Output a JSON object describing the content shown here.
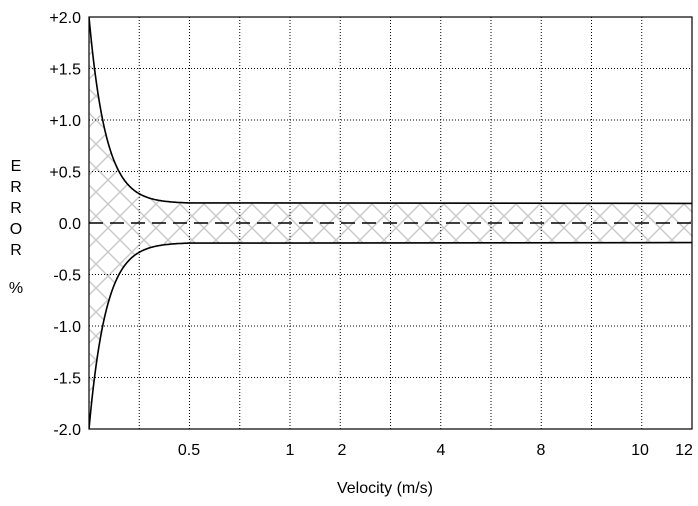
{
  "chart_data": {
    "type": "line",
    "title": "",
    "xlabel": "Velocity (m/s)",
    "ylabel_letters": [
      "E",
      "R",
      "R",
      "O",
      "R"
    ],
    "ylabel_unit": "%",
    "y_ticks": [
      "+2.0",
      "+1.5",
      "+1.0",
      "+0.5",
      "0.0",
      "-0.5",
      "-1.0",
      "-1.5",
      "-2.0"
    ],
    "y_values": [
      2.0,
      1.5,
      1.0,
      0.5,
      0.0,
      -0.5,
      -1.0,
      -1.5,
      -2.0
    ],
    "ylim": [
      -2.0,
      2.0
    ],
    "x_tick_labels": [
      "0.5",
      "1",
      "2",
      "4",
      "8",
      "10",
      "12"
    ],
    "x_scale": "non-linear (velocity labels at irregular spacing)",
    "grid": true,
    "grid_style": "dotted",
    "series": [
      {
        "role": "upper error limit",
        "points": [
          [
            0,
            2.0
          ],
          [
            0.1,
            1.05
          ],
          [
            0.2,
            0.55
          ],
          [
            0.3,
            0.32
          ],
          [
            0.4,
            0.22
          ],
          [
            0.5,
            0.19
          ],
          [
            12,
            0.19
          ]
        ]
      },
      {
        "role": "lower error limit",
        "points": [
          [
            0,
            -2.0
          ],
          [
            0.1,
            -1.05
          ],
          [
            0.2,
            -0.55
          ],
          [
            0.3,
            -0.32
          ],
          [
            0.4,
            -0.22
          ],
          [
            0.5,
            -0.19
          ],
          [
            12,
            -0.19
          ]
        ]
      },
      {
        "role": "zero reference (dashed)",
        "points": [
          [
            0,
            0.0
          ],
          [
            12,
            0.0
          ]
        ]
      }
    ],
    "band_fill": "cross-hatched",
    "colors": {
      "line": "#000000",
      "grid": "#000000",
      "hatch": "#c8c8c8",
      "background": "#ffffff"
    }
  }
}
